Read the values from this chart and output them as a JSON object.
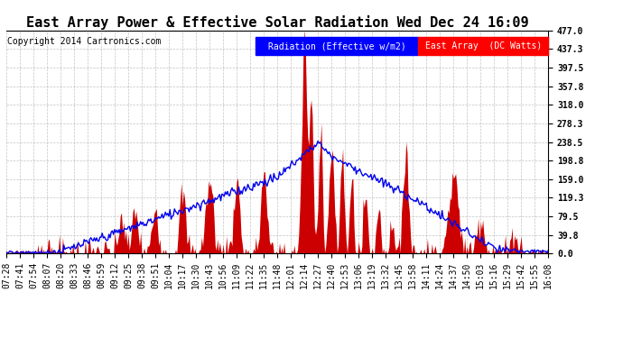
{
  "title": "East Array Power & Effective Solar Radiation Wed Dec 24 16:09",
  "copyright": "Copyright 2014 Cartronics.com",
  "legend_radiation": "Radiation (Effective w/m2)",
  "legend_east_array": "East Array  (DC Watts)",
  "yticks": [
    0.0,
    39.8,
    79.5,
    119.3,
    159.0,
    198.8,
    238.5,
    278.3,
    318.0,
    357.8,
    397.5,
    437.3,
    477.0
  ],
  "xtick_labels": [
    "07:28",
    "07:41",
    "07:54",
    "08:07",
    "08:20",
    "08:33",
    "08:46",
    "08:59",
    "09:12",
    "09:25",
    "09:38",
    "09:51",
    "10:04",
    "10:17",
    "10:30",
    "10:43",
    "10:56",
    "11:09",
    "11:22",
    "11:35",
    "11:48",
    "12:01",
    "12:14",
    "12:27",
    "12:40",
    "12:53",
    "13:06",
    "13:19",
    "13:32",
    "13:45",
    "13:58",
    "14:11",
    "14:24",
    "14:37",
    "14:50",
    "15:03",
    "15:16",
    "15:29",
    "15:42",
    "15:55",
    "16:08"
  ],
  "ymax": 477.0,
  "ymin": 0.0,
  "background_color": "#ffffff",
  "grid_color": "#aaaaaa",
  "fill_color": "#cc0000",
  "line_color": "#0000ee",
  "title_fontsize": 11,
  "tick_fontsize": 7,
  "copyright_fontsize": 7,
  "legend_fontsize": 7
}
